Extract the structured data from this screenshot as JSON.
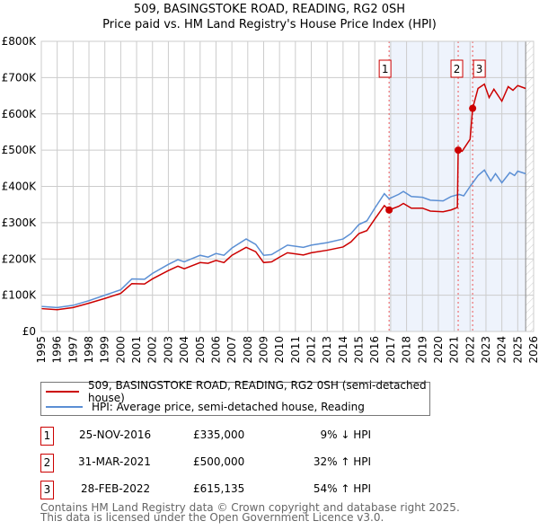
{
  "chart_data": {
    "type": "line",
    "title": "509, BASINGSTOKE ROAD, READING, RG2 0SH",
    "subtitle": "Price paid vs. HM Land Registry's House Price Index (HPI)",
    "xlim": [
      1995,
      2026
    ],
    "ylim": [
      0,
      800000
    ],
    "y_ticks": [
      {
        "v": 0,
        "label": "£0"
      },
      {
        "v": 100000,
        "label": "£100K"
      },
      {
        "v": 200000,
        "label": "£200K"
      },
      {
        "v": 300000,
        "label": "£300K"
      },
      {
        "v": 400000,
        "label": "£400K"
      },
      {
        "v": 500000,
        "label": "£500K"
      },
      {
        "v": 600000,
        "label": "£600K"
      },
      {
        "v": 700000,
        "label": "£700K"
      },
      {
        "v": 800000,
        "label": "£800K"
      }
    ],
    "x_ticks": [
      "1995",
      "1996",
      "1997",
      "1998",
      "1999",
      "2000",
      "2001",
      "2002",
      "2003",
      "2004",
      "2005",
      "2006",
      "2007",
      "2008",
      "2009",
      "2010",
      "2011",
      "2012",
      "2013",
      "2014",
      "2015",
      "2016",
      "2017",
      "2018",
      "2019",
      "2020",
      "2021",
      "2022",
      "2023",
      "2024",
      "2025",
      "2026"
    ],
    "grid": true,
    "shaded_from": 2016.9,
    "hatched_from": 2025.5,
    "series": [
      {
        "name": "509, BASINGSTOKE ROAD, READING, RG2 0SH (semi-detached house)",
        "color": "#cc0000",
        "points": [
          [
            1995,
            63000
          ],
          [
            1996,
            60000
          ],
          [
            1997,
            66000
          ],
          [
            1998,
            78000
          ],
          [
            1999,
            91000
          ],
          [
            2000,
            105000
          ],
          [
            2000.7,
            132000
          ],
          [
            2001.5,
            131000
          ],
          [
            2002,
            145000
          ],
          [
            2003,
            168000
          ],
          [
            2003.6,
            180000
          ],
          [
            2004,
            173000
          ],
          [
            2005,
            190000
          ],
          [
            2005.5,
            188000
          ],
          [
            2006,
            196000
          ],
          [
            2006.5,
            190000
          ],
          [
            2007,
            210000
          ],
          [
            2007.9,
            232000
          ],
          [
            2008.5,
            220000
          ],
          [
            2009,
            190000
          ],
          [
            2009.5,
            192000
          ],
          [
            2010,
            205000
          ],
          [
            2010.5,
            217000
          ],
          [
            2011.5,
            211000
          ],
          [
            2012,
            217000
          ],
          [
            2013,
            224000
          ],
          [
            2014,
            233000
          ],
          [
            2014.5,
            247000
          ],
          [
            2015,
            270000
          ],
          [
            2015.5,
            278000
          ],
          [
            2016,
            310000
          ],
          [
            2016.6,
            347000
          ],
          [
            2016.9,
            335000
          ],
          [
            2017.5,
            345000
          ],
          [
            2017.8,
            353000
          ],
          [
            2018.3,
            340000
          ],
          [
            2019,
            340000
          ],
          [
            2019.5,
            332000
          ],
          [
            2020.3,
            330000
          ],
          [
            2020.8,
            335000
          ],
          [
            2021.2,
            342000
          ],
          [
            2021.25,
            500000
          ],
          [
            2021.5,
            497000
          ],
          [
            2022,
            530000
          ],
          [
            2022.16,
            615135
          ],
          [
            2022.5,
            670000
          ],
          [
            2022.9,
            682000
          ],
          [
            2023.2,
            645000
          ],
          [
            2023.5,
            668000
          ],
          [
            2024,
            635000
          ],
          [
            2024.4,
            675000
          ],
          [
            2024.7,
            665000
          ],
          [
            2025,
            678000
          ],
          [
            2025.5,
            670000
          ]
        ]
      },
      {
        "name": "HPI: Average price, semi-detached house, Reading",
        "color": "#5b8fd4",
        "points": [
          [
            1995,
            69000
          ],
          [
            1996,
            66000
          ],
          [
            1997,
            72000
          ],
          [
            1998,
            85000
          ],
          [
            1999,
            100000
          ],
          [
            2000,
            115000
          ],
          [
            2000.7,
            145000
          ],
          [
            2001.5,
            144000
          ],
          [
            2002,
            160000
          ],
          [
            2003,
            185000
          ],
          [
            2003.6,
            198000
          ],
          [
            2004,
            192000
          ],
          [
            2005,
            210000
          ],
          [
            2005.5,
            205000
          ],
          [
            2006,
            215000
          ],
          [
            2006.5,
            210000
          ],
          [
            2007,
            230000
          ],
          [
            2007.9,
            255000
          ],
          [
            2008.5,
            240000
          ],
          [
            2009,
            210000
          ],
          [
            2009.5,
            212000
          ],
          [
            2010,
            225000
          ],
          [
            2010.5,
            238000
          ],
          [
            2011.5,
            232000
          ],
          [
            2012,
            238000
          ],
          [
            2013,
            245000
          ],
          [
            2014,
            255000
          ],
          [
            2014.5,
            270000
          ],
          [
            2015,
            295000
          ],
          [
            2015.5,
            305000
          ],
          [
            2016,
            340000
          ],
          [
            2016.6,
            380000
          ],
          [
            2016.9,
            366000
          ],
          [
            2017.5,
            378000
          ],
          [
            2017.8,
            386000
          ],
          [
            2018.3,
            372000
          ],
          [
            2019,
            370000
          ],
          [
            2019.5,
            362000
          ],
          [
            2020.3,
            360000
          ],
          [
            2020.8,
            372000
          ],
          [
            2021.3,
            378000
          ],
          [
            2021.6,
            374000
          ],
          [
            2022,
            400000
          ],
          [
            2022.5,
            430000
          ],
          [
            2022.9,
            445000
          ],
          [
            2023.3,
            415000
          ],
          [
            2023.6,
            435000
          ],
          [
            2024,
            410000
          ],
          [
            2024.5,
            438000
          ],
          [
            2024.8,
            430000
          ],
          [
            2025,
            442000
          ],
          [
            2025.5,
            435000
          ]
        ]
      }
    ],
    "sales": [
      {
        "id": "1",
        "x": 2016.9,
        "price": 335000
      },
      {
        "id": "2",
        "x": 2021.25,
        "price": 500000
      },
      {
        "id": "3",
        "x": 2022.16,
        "price": 615135
      }
    ]
  },
  "legend": {
    "red": "509, BASINGSTOKE ROAD, READING, RG2 0SH (semi-detached house)",
    "blue": "HPI: Average price, semi-detached house, Reading"
  },
  "transactions": [
    {
      "id": "1",
      "date": "25-NOV-2016",
      "price": "£335,000",
      "hpi": "9% ↓ HPI"
    },
    {
      "id": "2",
      "date": "31-MAR-2021",
      "price": "£500,000",
      "hpi": "32% ↑ HPI"
    },
    {
      "id": "3",
      "date": "28-FEB-2022",
      "price": "£615,135",
      "hpi": "54% ↑ HPI"
    }
  ],
  "footer": {
    "line1": "Contains HM Land Registry data © Crown copyright and database right 2025.",
    "line2": "This data is licensed under the Open Government Licence v3.0."
  }
}
